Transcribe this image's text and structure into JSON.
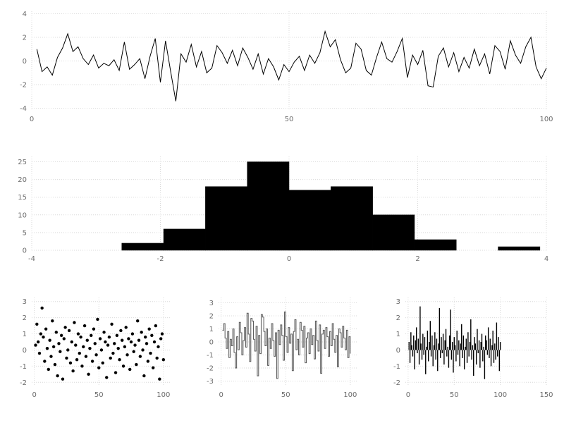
{
  "figure": {
    "background": "#ffffff"
  },
  "colors": {
    "series": "#000000",
    "step_line": "#555555",
    "grid": "#d9d9d9",
    "tick_label": "#6b6b6b"
  },
  "chart_data": [
    {
      "id": "noise-line",
      "type": "line",
      "title": "",
      "xlabel": "",
      "ylabel": "",
      "grid": true,
      "legend": false,
      "xlim": [
        0,
        100
      ],
      "ylim": [
        -4.2,
        4.2
      ],
      "xticks": [
        0,
        50,
        100
      ],
      "yticks": [
        -4,
        -2,
        0,
        2,
        4
      ],
      "x_start": 1,
      "values": [
        1.0,
        -0.9,
        -0.5,
        -1.2,
        0.3,
        1.1,
        2.3,
        0.8,
        1.2,
        0.2,
        -0.3,
        0.5,
        -0.6,
        -0.2,
        -0.4,
        0.1,
        -0.8,
        1.6,
        -0.7,
        -0.3,
        0.2,
        -1.5,
        0.4,
        1.9,
        -1.8,
        1.7,
        -0.9,
        -3.4,
        0.6,
        -0.1,
        1.4,
        -0.5,
        0.8,
        -1.0,
        -0.6,
        1.3,
        0.7,
        -0.2,
        0.9,
        -0.4,
        1.1,
        0.3,
        -0.7,
        0.6,
        -1.1,
        0.2,
        -0.5,
        -1.6,
        -0.3,
        -0.9,
        -0.1,
        0.4,
        -0.8,
        0.5,
        -0.2,
        0.7,
        2.5,
        1.2,
        1.8,
        0.1,
        -1.0,
        -0.6,
        1.5,
        1.0,
        -0.8,
        -1.2,
        0.3,
        1.6,
        0.2,
        -0.1,
        0.8,
        1.9,
        -1.4,
        0.5,
        -0.3,
        0.9,
        -2.1,
        -2.2,
        0.4,
        1.1,
        -0.5,
        0.7,
        -0.9,
        0.3,
        -0.6,
        1.0,
        -0.4,
        0.6,
        -1.1,
        1.3,
        0.8,
        -0.7,
        1.7,
        0.5,
        -0.2,
        1.2,
        2.0,
        -0.5,
        -1.5,
        -0.6
      ]
    },
    {
      "id": "histogram",
      "type": "bar",
      "title": "",
      "xlabel": "",
      "ylabel": "",
      "grid": true,
      "legend": false,
      "xlim": [
        -4,
        4
      ],
      "ylim": [
        0,
        26.5
      ],
      "xticks": [
        -4,
        -2,
        0,
        2,
        4
      ],
      "yticks": [
        0,
        5,
        10,
        15,
        20,
        25
      ],
      "bin_edges": [
        -2.6,
        -1.95,
        -1.3,
        -0.65,
        0,
        0.65,
        1.3,
        1.95,
        2.6,
        3.25,
        3.9
      ],
      "counts": [
        2,
        6,
        18,
        25,
        17,
        18,
        10,
        3,
        0,
        1
      ]
    },
    {
      "id": "scatter",
      "type": "scatter",
      "title": "",
      "xlabel": "",
      "ylabel": "",
      "grid": true,
      "legend": false,
      "xlim": [
        -2,
        105
      ],
      "ylim": [
        -2.25,
        3.25
      ],
      "xticks": [
        0,
        50,
        100
      ],
      "yticks": [
        -2,
        -1,
        0,
        1,
        2,
        3
      ],
      "x_start": 1,
      "values": [
        0.3,
        1.6,
        0.5,
        -0.2,
        1.0,
        2.6,
        0.8,
        -0.7,
        1.3,
        0.1,
        -1.2,
        0.6,
        -0.4,
        1.8,
        0.2,
        -0.9,
        1.1,
        -1.6,
        0.4,
        -0.1,
        0.9,
        -1.8,
        0.7,
        1.4,
        -0.5,
        0.0,
        1.2,
        -0.8,
        0.5,
        -1.3,
        1.7,
        0.3,
        -0.6,
        1.0,
        -0.2,
        0.8,
        -1.0,
        0.2,
        1.5,
        -0.4,
        0.6,
        -1.5,
        0.1,
        0.9,
        -0.7,
        1.3,
        0.4,
        -0.3,
        1.9,
        -1.1,
        0.7,
        0.0,
        -0.8,
        1.1,
        0.5,
        -1.7,
        0.3,
        0.8,
        -0.5,
        1.6,
        -0.2,
        0.4,
        -1.4,
        0.9,
        0.1,
        -0.6,
        1.2,
        0.6,
        -1.0,
        0.2,
        1.4,
        -0.3,
        0.7,
        -1.2,
        0.5,
        1.0,
        -0.1,
        0.3,
        -0.9,
        1.8,
        0.6,
        -0.4,
        1.1,
        0.0,
        -1.6,
        0.8,
        0.4,
        -0.7,
        1.3,
        -0.2,
        0.9,
        -1.1,
        0.5,
        1.5,
        -0.5,
        0.2,
        -1.8,
        0.7,
        1.0,
        -0.6
      ]
    },
    {
      "id": "step",
      "type": "step",
      "title": "",
      "xlabel": "",
      "ylabel": "",
      "grid": true,
      "legend": false,
      "xlim": [
        -2,
        105
      ],
      "ylim": [
        -3.4,
        3.4
      ],
      "xticks": [
        0,
        50,
        100
      ],
      "yticks": [
        -3,
        -2,
        -1,
        0,
        1,
        2,
        3
      ],
      "x_start": 1,
      "values": [
        0.9,
        1.4,
        0.3,
        -0.5,
        0.8,
        -1.2,
        0.2,
        -0.3,
        1.0,
        -0.8,
        -2.0,
        0.4,
        -0.6,
        1.5,
        0.7,
        -1.0,
        0.1,
        1.1,
        -0.4,
        2.2,
        0.6,
        -1.5,
        1.8,
        1.6,
        0.2,
        -0.7,
        1.2,
        -2.6,
        0.5,
        -0.9,
        2.1,
        1.9,
        0.8,
        -0.3,
        1.0,
        -1.8,
        0.3,
        -0.5,
        1.4,
        0.1,
        -1.1,
        0.7,
        -2.8,
        0.9,
        -0.2,
        1.3,
        0.5,
        -1.4,
        2.3,
        0.4,
        -0.8,
        1.1,
        -0.1,
        0.6,
        -2.2,
        0.8,
        1.7,
        -0.6,
        0.2,
        -1.0,
        1.5,
        0.9,
        -0.4,
        1.2,
        -1.6,
        0.3,
        0.7,
        -0.9,
        1.0,
        -0.2,
        0.5,
        -1.3,
        1.6,
        0.1,
        -0.7,
        1.3,
        -2.4,
        0.6,
        0.9,
        -0.5,
        1.1,
        0.4,
        -1.1,
        0.8,
        -0.3,
        1.4,
        0.2,
        -0.8,
        0.5,
        -1.9,
        1.0,
        0.7,
        -0.4,
        1.2,
        0.3,
        -0.6,
        0.9,
        -1.2,
        0.4,
        -0.9
      ]
    },
    {
      "id": "stem",
      "type": "stem",
      "title": "",
      "xlabel": "",
      "ylabel": "",
      "grid": true,
      "legend": false,
      "xlim": [
        -3,
        150
      ],
      "ylim": [
        -2.25,
        3.25
      ],
      "xticks": [
        0,
        50,
        100,
        150
      ],
      "yticks": [
        -2,
        -1,
        0,
        1,
        2,
        3
      ],
      "x_start": 1,
      "values": [
        0.5,
        -0.8,
        1.1,
        0.3,
        -0.4,
        0.9,
        -1.2,
        0.6,
        1.4,
        -0.2,
        0.7,
        -0.9,
        2.7,
        0.4,
        -0.6,
        1.0,
        -0.3,
        0.8,
        -1.5,
        0.2,
        1.2,
        -0.7,
        0.5,
        1.8,
        -0.4,
        0.9,
        -1.0,
        0.3,
        1.1,
        -0.6,
        0.7,
        -1.3,
        0.4,
        2.6,
        -0.5,
        0.8,
        -0.2,
        1.0,
        -0.9,
        0.6,
        1.3,
        -0.4,
        0.2,
        -1.1,
        0.9,
        2.5,
        -0.6,
        0.5,
        -1.4,
        0.8,
        0.3,
        -0.7,
        1.2,
        -0.3,
        0.6,
        -1.0,
        0.4,
        1.6,
        -0.5,
        0.9,
        -1.2,
        0.2,
        0.7,
        -0.8,
        1.1,
        -0.4,
        0.5,
        1.9,
        -0.6,
        0.3,
        -1.6,
        0.8,
        0.4,
        -0.9,
        1.3,
        -0.2,
        0.6,
        -1.1,
        0.5,
        1.0,
        -0.7,
        0.2,
        -1.8,
        0.9,
        0.6,
        -0.3,
        1.4,
        -0.5,
        0.7,
        -1.0,
        0.3,
        1.2,
        -0.8,
        0.4,
        -0.6,
        1.7,
        -0.4,
        0.8,
        -1.3,
        0.5
      ]
    }
  ]
}
